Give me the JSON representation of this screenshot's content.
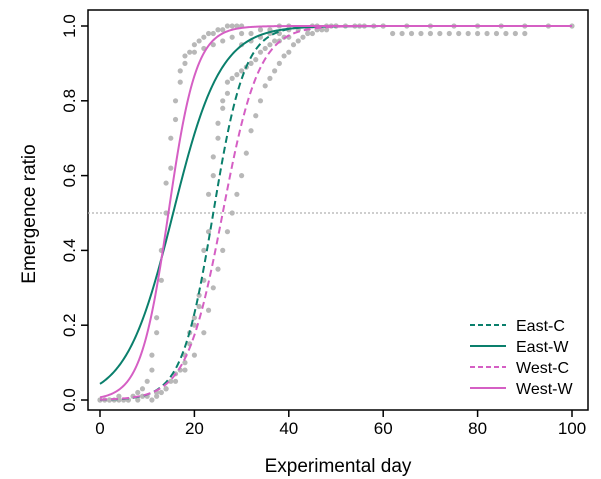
{
  "chart_data": {
    "type": "scatter",
    "title": "",
    "xlabel": "Experimental day",
    "ylabel": "Emergence ratio",
    "xlim": [
      0,
      100
    ],
    "ylim": [
      0,
      1
    ],
    "xticks": [
      0,
      20,
      40,
      60,
      80,
      100
    ],
    "yticks": [
      0.0,
      0.2,
      0.4,
      0.6,
      0.8,
      1.0
    ],
    "xtick_labels": [
      "0",
      "20",
      "40",
      "60",
      "80",
      "100"
    ],
    "ytick_labels": [
      "0.0",
      "0.2",
      "0.4",
      "0.6",
      "0.8",
      "1.0"
    ],
    "grid": false,
    "legend_position": "bottom-right",
    "reference_line": {
      "y": 0.5,
      "style": "dotted",
      "color": "#b0b0b0"
    },
    "series": [
      {
        "name": "East-C",
        "kind": "logistic-fit",
        "color": "#0a7f6c",
        "dash": "dashed",
        "midpoint": 24,
        "rate": 0.3
      },
      {
        "name": "East-W",
        "kind": "logistic-fit",
        "color": "#0a7f6c",
        "dash": "solid",
        "midpoint": 15.5,
        "rate": 0.2
      },
      {
        "name": "West-C",
        "kind": "logistic-fit",
        "color": "#d55fc4",
        "dash": "dashed",
        "midpoint": 26,
        "rate": 0.26
      },
      {
        "name": "West-W",
        "kind": "logistic-fit",
        "color": "#d55fc4",
        "dash": "solid",
        "midpoint": 14.5,
        "rate": 0.34
      }
    ],
    "observations": {
      "color": "#b8b8b8",
      "points": [
        [
          0,
          0.0
        ],
        [
          1,
          0.0
        ],
        [
          2,
          0.0
        ],
        [
          3,
          0.0
        ],
        [
          4,
          0.01
        ],
        [
          5,
          0.0
        ],
        [
          6,
          0.0
        ],
        [
          7,
          0.01
        ],
        [
          8,
          0.02
        ],
        [
          9,
          0.03
        ],
        [
          10,
          0.05
        ],
        [
          11,
          0.08
        ],
        [
          11,
          0.12
        ],
        [
          12,
          0.18
        ],
        [
          12,
          0.22
        ],
        [
          13,
          0.32
        ],
        [
          13,
          0.4
        ],
        [
          14,
          0.5
        ],
        [
          14,
          0.58
        ],
        [
          15,
          0.62
        ],
        [
          15,
          0.7
        ],
        [
          16,
          0.75
        ],
        [
          16,
          0.8
        ],
        [
          17,
          0.85
        ],
        [
          17,
          0.88
        ],
        [
          18,
          0.9
        ],
        [
          18,
          0.92
        ],
        [
          19,
          0.93
        ],
        [
          20,
          0.95
        ],
        [
          21,
          0.96
        ],
        [
          22,
          0.97
        ],
        [
          23,
          0.98
        ],
        [
          24,
          0.98
        ],
        [
          25,
          0.99
        ],
        [
          26,
          0.99
        ],
        [
          27,
          1.0
        ],
        [
          28,
          1.0
        ],
        [
          29,
          1.0
        ],
        [
          30,
          1.0
        ],
        [
          0,
          0.0
        ],
        [
          2,
          0.0
        ],
        [
          4,
          0.0
        ],
        [
          6,
          0.0
        ],
        [
          8,
          0.0
        ],
        [
          9,
          0.01
        ],
        [
          10,
          0.01
        ],
        [
          11,
          0.0
        ],
        [
          12,
          0.01
        ],
        [
          13,
          0.02
        ],
        [
          14,
          0.03
        ],
        [
          15,
          0.05
        ],
        [
          16,
          0.07
        ],
        [
          17,
          0.08
        ],
        [
          18,
          0.1
        ],
        [
          18,
          0.12
        ],
        [
          19,
          0.15
        ],
        [
          19,
          0.18
        ],
        [
          20,
          0.2
        ],
        [
          20,
          0.22
        ],
        [
          21,
          0.25
        ],
        [
          21,
          0.28
        ],
        [
          22,
          0.32
        ],
        [
          22,
          0.4
        ],
        [
          23,
          0.45
        ],
        [
          23,
          0.55
        ],
        [
          24,
          0.6
        ],
        [
          24,
          0.65
        ],
        [
          25,
          0.7
        ],
        [
          25,
          0.74
        ],
        [
          26,
          0.78
        ],
        [
          26,
          0.8
        ],
        [
          27,
          0.82
        ],
        [
          27,
          0.85
        ],
        [
          28,
          0.86
        ],
        [
          29,
          0.87
        ],
        [
          30,
          0.88
        ],
        [
          31,
          0.89
        ],
        [
          32,
          0.9
        ],
        [
          33,
          0.91
        ],
        [
          34,
          0.93
        ],
        [
          35,
          0.94
        ],
        [
          36,
          0.95
        ],
        [
          37,
          0.96
        ],
        [
          38,
          0.96
        ],
        [
          39,
          0.97
        ],
        [
          40,
          0.97
        ],
        [
          12,
          0.02
        ],
        [
          14,
          0.03
        ],
        [
          16,
          0.05
        ],
        [
          18,
          0.08
        ],
        [
          20,
          0.12
        ],
        [
          22,
          0.18
        ],
        [
          23,
          0.24
        ],
        [
          24,
          0.3
        ],
        [
          25,
          0.35
        ],
        [
          26,
          0.4
        ],
        [
          27,
          0.45
        ],
        [
          28,
          0.5
        ],
        [
          29,
          0.55
        ],
        [
          30,
          0.6
        ],
        [
          31,
          0.66
        ],
        [
          32,
          0.72
        ],
        [
          33,
          0.76
        ],
        [
          34,
          0.8
        ],
        [
          35,
          0.84
        ],
        [
          36,
          0.86
        ],
        [
          37,
          0.88
        ],
        [
          38,
          0.9
        ],
        [
          39,
          0.92
        ],
        [
          40,
          0.93
        ],
        [
          41,
          0.95
        ],
        [
          42,
          0.96
        ],
        [
          43,
          0.97
        ],
        [
          44,
          0.98
        ],
        [
          45,
          0.98
        ],
        [
          46,
          0.99
        ],
        [
          47,
          0.99
        ],
        [
          48,
          0.99
        ],
        [
          49,
          1.0
        ],
        [
          50,
          1.0
        ],
        [
          30,
          0.95
        ],
        [
          32,
          0.96
        ],
        [
          34,
          0.97
        ],
        [
          36,
          0.98
        ],
        [
          38,
          0.98
        ],
        [
          40,
          0.99
        ],
        [
          42,
          0.99
        ],
        [
          44,
          0.99
        ],
        [
          46,
          1.0
        ],
        [
          48,
          1.0
        ],
        [
          50,
          1.0
        ],
        [
          52,
          1.0
        ],
        [
          54,
          1.0
        ],
        [
          56,
          1.0
        ],
        [
          58,
          1.0
        ],
        [
          60,
          1.0
        ],
        [
          62,
          0.98
        ],
        [
          64,
          0.98
        ],
        [
          66,
          0.98
        ],
        [
          68,
          0.98
        ],
        [
          70,
          0.98
        ],
        [
          72,
          0.98
        ],
        [
          74,
          0.98
        ],
        [
          76,
          0.98
        ],
        [
          78,
          0.98
        ],
        [
          80,
          0.98
        ],
        [
          82,
          0.98
        ],
        [
          84,
          0.98
        ],
        [
          86,
          0.98
        ],
        [
          88,
          0.98
        ],
        [
          90,
          0.98
        ],
        [
          20,
          0.93
        ],
        [
          22,
          0.94
        ],
        [
          24,
          0.95
        ],
        [
          26,
          0.96
        ],
        [
          28,
          0.97
        ],
        [
          30,
          0.98
        ],
        [
          32,
          0.98
        ],
        [
          34,
          0.99
        ],
        [
          36,
          0.99
        ],
        [
          38,
          1.0
        ],
        [
          40,
          1.0
        ],
        [
          45,
          1.0
        ],
        [
          50,
          1.0
        ],
        [
          55,
          1.0
        ],
        [
          60,
          1.0
        ],
        [
          65,
          1.0
        ],
        [
          70,
          1.0
        ],
        [
          75,
          1.0
        ],
        [
          80,
          1.0
        ],
        [
          85,
          1.0
        ],
        [
          90,
          1.0
        ],
        [
          95,
          1.0
        ],
        [
          100,
          1.0
        ]
      ]
    }
  }
}
